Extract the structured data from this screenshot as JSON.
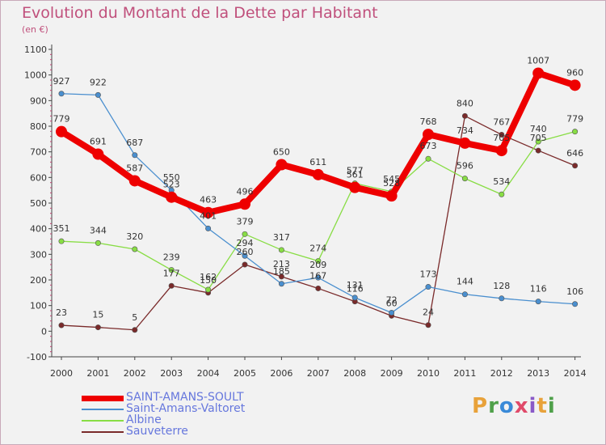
{
  "header": {
    "title": "Evolution du Montant de la Dette par Habitant",
    "unit": "(en €)"
  },
  "brand": {
    "text": "Proxiti",
    "colors": [
      "#e8a23a",
      "#4fa04a",
      "#3a8ad8",
      "#e04a6a",
      "#8a5ac8",
      "#e8a23a",
      "#4fa04a"
    ]
  },
  "chart_data": {
    "type": "line",
    "title": "Evolution du Montant de la Dette par Habitant",
    "subtitle": "(en €)",
    "xlabel": "",
    "ylabel": "",
    "x": [
      "2000",
      "2001",
      "2002",
      "2003",
      "2004",
      "2005",
      "2006",
      "2007",
      "2008",
      "2009",
      "2010",
      "2011",
      "2012",
      "2013",
      "2014"
    ],
    "ylim": [
      -100,
      1100
    ],
    "yticks": [
      "-100",
      "0",
      "100",
      "200",
      "300",
      "400",
      "500",
      "600",
      "700",
      "800",
      "900",
      "1000",
      "1100"
    ],
    "grid": false,
    "legend_position": "bottom-left",
    "series": [
      {
        "name": "SAINT-AMANS-SOULT",
        "color": "#ee0000",
        "values": [
          779,
          691,
          587,
          523,
          463,
          496,
          650,
          611,
          561,
          528,
          768,
          734,
          705,
          1007,
          960
        ],
        "value_labels": [
          "779",
          "691",
          "587",
          "523",
          "463",
          "496",
          "650",
          "611",
          "561",
          "528",
          "768",
          "734",
          "705",
          "1007",
          "960"
        ]
      },
      {
        "name": "Saint-Amans-Valtoret",
        "color": "#4a8fcf",
        "values": [
          927,
          922,
          687,
          550,
          401,
          294,
          185,
          209,
          131,
          72,
          173,
          144,
          128,
          116,
          106
        ],
        "value_labels": [
          "927",
          "922",
          "687",
          "550",
          "401",
          "294",
          "185",
          "209",
          "131",
          "72",
          "173",
          "144",
          "128",
          "116",
          "106"
        ]
      },
      {
        "name": "Albine",
        "color": "#88dd44",
        "values": [
          351,
          344,
          320,
          239,
          162,
          379,
          317,
          274,
          577,
          545,
          673,
          596,
          534,
          740,
          779
        ],
        "value_labels": [
          "351",
          "344",
          "320",
          "239",
          "162",
          "379",
          "317",
          "274",
          "577",
          "545",
          "673",
          "596",
          "534",
          "740",
          "779"
        ]
      },
      {
        "name": "Sauveterre",
        "color": "#7a2a2a",
        "values": [
          23,
          15,
          5,
          177,
          150,
          260,
          213,
          167,
          116,
          60,
          24,
          840,
          767,
          705,
          646
        ],
        "value_labels": [
          "23",
          "15",
          "5",
          "177",
          "150",
          "260",
          "213",
          "167",
          "116",
          "60",
          "24",
          "840",
          "767",
          "705",
          "646"
        ],
        "gap_after_index": 10
      }
    ]
  }
}
